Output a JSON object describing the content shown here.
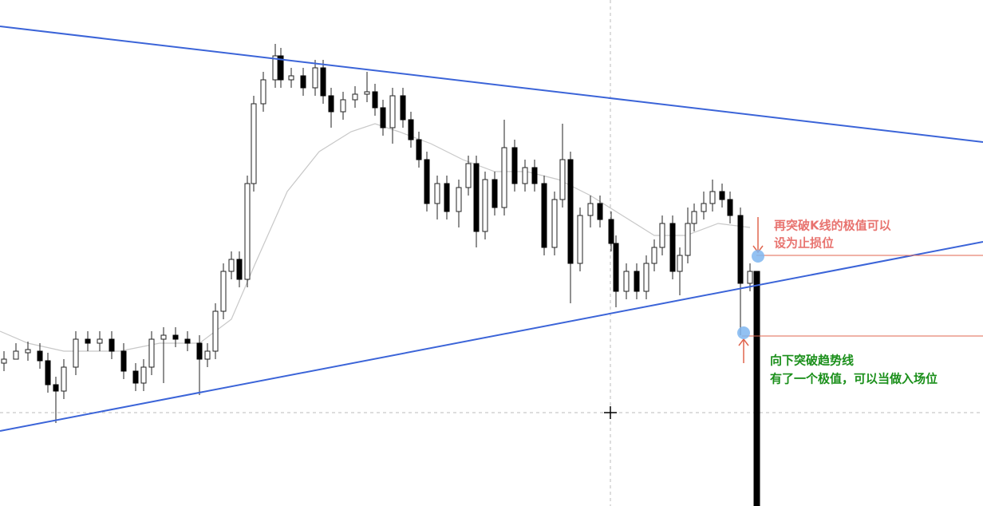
{
  "annotations": {
    "stop_loss": {
      "lines": [
        "再突破K线的极值可以",
        "设为止损位"
      ]
    },
    "entry": {
      "lines": [
        "向下突破趋势线",
        "有了一个极值，可以当做入场位"
      ]
    }
  }
}
